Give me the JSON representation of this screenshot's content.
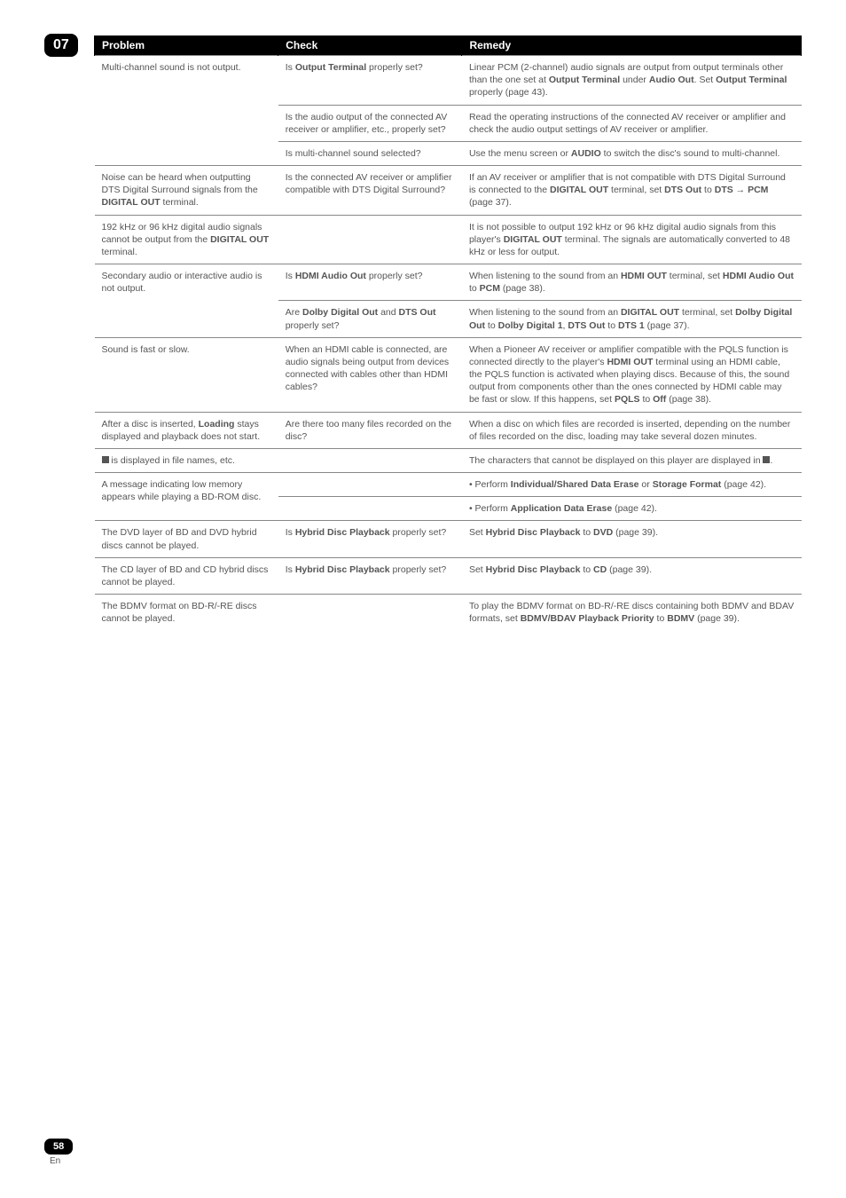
{
  "chapter": "07",
  "page_number": "58",
  "lang": "En",
  "table": {
    "columns": [
      "Problem",
      "Check",
      "Remedy"
    ],
    "rows": [
      {
        "problem": "Multi-channel sound is not output.",
        "problem_rowspan": 3,
        "check": "Is <b>Output Terminal</b> properly set?",
        "remedy": "Linear PCM (2-channel) audio signals are output from output terminals other than the one set at <b>Output Terminal</b> under <b>Audio Out</b>. Set <b>Output Terminal</b> properly (page 43)."
      },
      {
        "check": "Is the audio output of the connected AV receiver or amplifier, etc., properly set?",
        "remedy": "Read the operating instructions of the connected AV receiver or amplifier and check the audio output settings of AV receiver or amplifier."
      },
      {
        "check": "Is multi-channel sound selected?",
        "remedy": "Use the menu screen or <b>AUDIO</b> to switch the disc's sound to multi-channel."
      },
      {
        "problem": "Noise can be heard when outputting DTS Digital Surround signals from the <b>DIGITAL OUT</b> terminal.",
        "check": "Is the connected AV receiver or amplifier compatible with DTS Digital Surround?",
        "remedy": "If an AV receiver or amplifier that is not compatible with DTS Digital Surround is connected to the <b>DIGITAL OUT</b> terminal, set <b>DTS Out</b> to <b>DTS → PCM</b> (page 37)."
      },
      {
        "problem": "192 kHz or 96 kHz digital audio signals cannot be output from the <b>DIGITAL OUT</b> terminal.",
        "check": "",
        "remedy": "It is not possible to output 192 kHz or 96 kHz digital audio signals from this player's <b>DIGITAL OUT</b> terminal. The signals are automatically converted to 48 kHz or less for output."
      },
      {
        "problem": "Secondary audio or interactive audio is not output.",
        "problem_rowspan": 2,
        "check": "Is <b>HDMI Audio Out</b> properly set?",
        "remedy": "When listening to the sound from an <b>HDMI OUT</b> terminal, set <b>HDMI Audio Out</b> to <b>PCM</b> (page 38)."
      },
      {
        "check": "Are <b>Dolby Digital Out</b> and <b>DTS Out</b> properly set?",
        "remedy": "When listening to the sound from an <b>DIGITAL OUT</b> terminal, set <b>Dolby Digital Out</b> to <b>Dolby Digital 1</b>, <b>DTS Out</b> to <b>DTS 1</b> (page 37)."
      },
      {
        "problem": "Sound is fast or slow.",
        "check": "When an HDMI cable is connected, are audio signals being output from devices connected with cables other than HDMI cables?",
        "remedy": "When a Pioneer AV receiver or amplifier compatible with the PQLS function is connected directly to the player's <b>HDMI OUT</b> terminal using an HDMI cable, the PQLS function is activated when playing discs. Because of this, the sound output from components other than the ones connected by HDMI cable may be fast or slow. If this happens, set <b>PQLS</b> to <b>Off</b> (page 38)."
      },
      {
        "problem": "After a disc is inserted, <b>Loading</b> stays displayed and playback does not start.",
        "check": "Are there too many files recorded on the disc?",
        "remedy": "When a disc on which files are recorded is inserted, depending on the number of files recorded on the disc, loading may take several dozen minutes."
      },
      {
        "problem": "<span class='blocky'></span> is displayed in file names, etc.",
        "check": "",
        "remedy": "The characters that cannot be displayed on this player are displayed in <span class='blocky'></span>."
      },
      {
        "problem": "A message indicating low memory appears while playing a BD-ROM disc.",
        "problem_rowspan": 2,
        "check": "",
        "remedy": "• Perform <b>Individual/Shared Data Erase</b> or <b>Storage Format</b> (page 42)."
      },
      {
        "check": "",
        "remedy": "• Perform <b>Application Data Erase</b> (page 42)."
      },
      {
        "problem": "The DVD layer of BD and DVD hybrid discs cannot be played.",
        "check": "Is <b>Hybrid Disc Playback</b> properly set?",
        "remedy": "Set <b>Hybrid Disc Playback</b> to <b>DVD</b> (page 39)."
      },
      {
        "problem": "The CD layer of BD and CD hybrid discs cannot be played.",
        "check": "Is <b>Hybrid Disc Playback</b> properly set?",
        "remedy": "Set <b>Hybrid Disc Playback</b> to <b>CD</b> (page 39)."
      },
      {
        "problem": "The BDMV format on BD-R/-RE discs cannot be played.",
        "check": "",
        "remedy": "To play the BDMV format on BD-R/-RE discs containing both BDMV and BDAV formats, set <b>BDMV/BDAV Playback Priority</b> to <b>BDMV</b> (page 39)."
      }
    ]
  }
}
